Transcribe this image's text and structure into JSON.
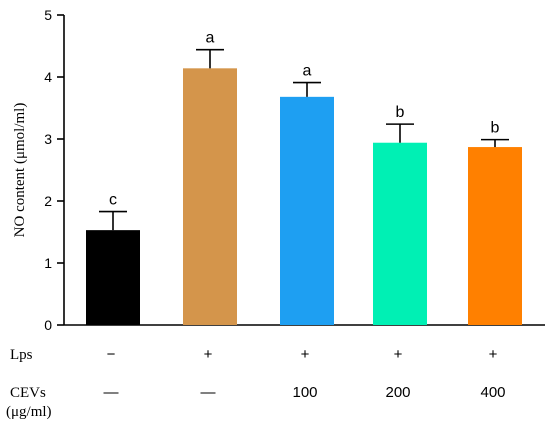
{
  "chart_data": {
    "type": "bar",
    "title": "",
    "xlabel": "",
    "ylabel": "NO content (μmol/ml)",
    "ylim": [
      0,
      5
    ],
    "yticks": [
      "0",
      "1",
      "2",
      "3",
      "4",
      "5"
    ],
    "grid": false,
    "bars": [
      {
        "value": 1.53,
        "error": 0.3,
        "letter": "c",
        "color": "#000000",
        "lps": "−",
        "cevs": "—"
      },
      {
        "value": 4.14,
        "error": 0.3,
        "letter": "a",
        "color": "#D4954B",
        "lps": "+",
        "cevs": "—"
      },
      {
        "value": 3.68,
        "error": 0.23,
        "letter": "a",
        "color": "#1E9FF2",
        "lps": "+",
        "cevs": "100"
      },
      {
        "value": 2.94,
        "error": 0.3,
        "letter": "b",
        "color": "#00F0B4",
        "lps": "+",
        "cevs": "200"
      },
      {
        "value": 2.87,
        "error": 0.12,
        "letter": "b",
        "color": "#FF8000",
        "lps": "+",
        "cevs": "400"
      }
    ],
    "row_labels": {
      "lps": "Lps",
      "cevs": "CEVs",
      "cevs_unit": "(μg/ml)"
    }
  }
}
